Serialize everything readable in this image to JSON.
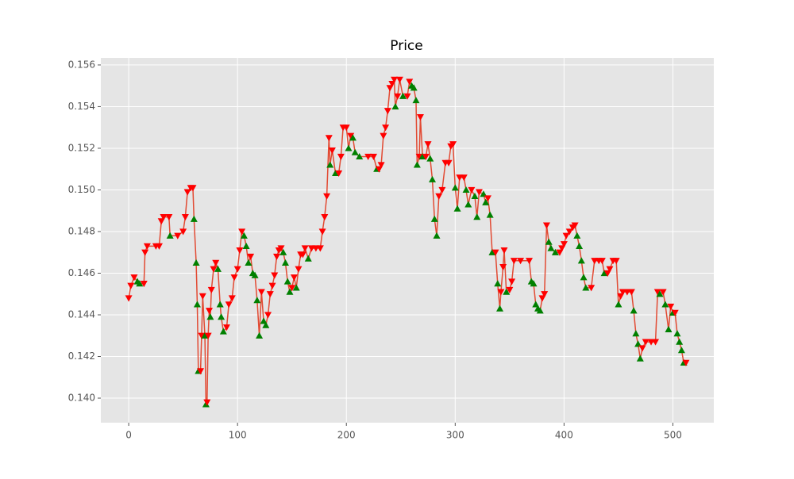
{
  "chart_data": {
    "type": "line",
    "title": "Price",
    "x": [
      0,
      2,
      5,
      8,
      10,
      14,
      15,
      17,
      25,
      28,
      30,
      32,
      37,
      38,
      45,
      50,
      52,
      54,
      57,
      59,
      60,
      62,
      63,
      64,
      66,
      67,
      68,
      70,
      71,
      72,
      73,
      74,
      75,
      76,
      78,
      80,
      82,
      84,
      85,
      87,
      90,
      92,
      95,
      97,
      100,
      102,
      104,
      106,
      108,
      110,
      112,
      114,
      116,
      118,
      120,
      122,
      124,
      126,
      128,
      130,
      132,
      134,
      136,
      138,
      140,
      142,
      144,
      146,
      148,
      150,
      152,
      154,
      156,
      158,
      160,
      162,
      165,
      168,
      172,
      176,
      178,
      180,
      182,
      184,
      185,
      187,
      190,
      193,
      195,
      197,
      200,
      202,
      204,
      206,
      208,
      212,
      220,
      225,
      228,
      230,
      232,
      234,
      236,
      238,
      240,
      242,
      244,
      245,
      247,
      249,
      252,
      256,
      258,
      260,
      262,
      264,
      265,
      267,
      268,
      270,
      273,
      275,
      277,
      279,
      281,
      283,
      285,
      288,
      291,
      294,
      296,
      298,
      300,
      302,
      304,
      308,
      310,
      312,
      315,
      318,
      320,
      322,
      326,
      328,
      330,
      332,
      334,
      337,
      339,
      341,
      342,
      344,
      345,
      347,
      350,
      352,
      354,
      360,
      368,
      370,
      372,
      374,
      376,
      378,
      380,
      382,
      384,
      386,
      388,
      392,
      396,
      398,
      400,
      402,
      405,
      408,
      410,
      412,
      414,
      416,
      418,
      420,
      425,
      428,
      432,
      435,
      437,
      440,
      442,
      445,
      448,
      450,
      452,
      454,
      458,
      462,
      464,
      466,
      468,
      470,
      472,
      475,
      480,
      484,
      486,
      488,
      491,
      493,
      496,
      498,
      500,
      502,
      504,
      506,
      508,
      510,
      512
    ],
    "series": [
      {
        "color": "#e24a33",
        "values": [
          0.1448,
          0.1454,
          0.1458,
          0.1456,
          0.1455,
          0.1455,
          0.147,
          0.1473,
          0.1473,
          0.1473,
          0.1485,
          0.1487,
          0.1487,
          0.1478,
          0.1478,
          0.148,
          0.1487,
          0.1499,
          0.1501,
          0.1501,
          0.1486,
          0.1465,
          0.1445,
          0.1413,
          0.1413,
          0.143,
          0.1449,
          0.143,
          0.1397,
          0.1398,
          0.143,
          0.1442,
          0.1439,
          0.1452,
          0.1462,
          0.1465,
          0.1462,
          0.1445,
          0.1439,
          0.1432,
          0.1434,
          0.1445,
          0.1448,
          0.1458,
          0.1462,
          0.1471,
          0.148,
          0.1478,
          0.1473,
          0.1465,
          0.1468,
          0.146,
          0.1459,
          0.1447,
          0.143,
          0.1451,
          0.1437,
          0.1435,
          0.144,
          0.145,
          0.1454,
          0.1459,
          0.1468,
          0.1471,
          0.1472,
          0.147,
          0.1465,
          0.1456,
          0.1451,
          0.1453,
          0.1458,
          0.1453,
          0.1462,
          0.1469,
          0.1469,
          0.1472,
          0.1467,
          0.1472,
          0.1472,
          0.1472,
          0.148,
          0.1487,
          0.1497,
          0.1525,
          0.1512,
          0.1519,
          0.1508,
          0.1508,
          0.1516,
          0.153,
          0.153,
          0.152,
          0.1526,
          0.1525,
          0.1518,
          0.1516,
          0.1516,
          0.1516,
          0.151,
          0.151,
          0.1512,
          0.1526,
          0.153,
          0.1538,
          0.1549,
          0.1551,
          0.1553,
          0.154,
          0.1545,
          0.1553,
          0.1545,
          0.1545,
          0.1552,
          0.155,
          0.1549,
          0.1543,
          0.1512,
          0.1516,
          0.1535,
          0.1516,
          0.1516,
          0.1522,
          0.1515,
          0.1505,
          0.1486,
          0.1478,
          0.1497,
          0.15,
          0.1513,
          0.1513,
          0.1521,
          0.1522,
          0.1501,
          0.1491,
          0.1506,
          0.1506,
          0.15,
          0.1493,
          0.15,
          0.1497,
          0.1487,
          0.1499,
          0.1498,
          0.1494,
          0.1496,
          0.1488,
          0.147,
          0.147,
          0.1455,
          0.1443,
          0.1451,
          0.1463,
          0.1471,
          0.1451,
          0.1452,
          0.1456,
          0.1466,
          0.1466,
          0.1466,
          0.1456,
          0.1455,
          0.1445,
          0.1443,
          0.1442,
          0.1448,
          0.145,
          0.1483,
          0.1475,
          0.1472,
          0.147,
          0.147,
          0.1472,
          0.1474,
          0.1478,
          0.148,
          0.1482,
          0.1483,
          0.1478,
          0.1473,
          0.1466,
          0.1458,
          0.1453,
          0.1453,
          0.1466,
          0.1466,
          0.1466,
          0.146,
          0.146,
          0.1462,
          0.1466,
          0.1466,
          0.1445,
          0.1449,
          0.1451,
          0.1451,
          0.1451,
          0.1442,
          0.1431,
          0.1426,
          0.1419,
          0.1424,
          0.1427,
          0.1427,
          0.1427,
          0.1451,
          0.145,
          0.1451,
          0.1445,
          0.1433,
          0.1444,
          0.1441,
          0.1441,
          0.1431,
          0.1427,
          0.1423,
          0.1417,
          0.1417
        ],
        "markers": [
          "v",
          "v",
          "v",
          "^",
          "^",
          "v",
          "v",
          "v",
          "v",
          "v",
          "v",
          "v",
          "v",
          "^",
          "v",
          "v",
          "v",
          "v",
          "v",
          "v",
          "^",
          "^",
          "^",
          "^",
          "v",
          "v",
          "v",
          "^",
          "^",
          "v",
          "v",
          "v",
          "^",
          "v",
          "v",
          "v",
          "^",
          "^",
          "^",
          "^",
          "v",
          "v",
          "v",
          "v",
          "v",
          "v",
          "v",
          "^",
          "^",
          "^",
          "v",
          "^",
          "^",
          "^",
          "^",
          "v",
          "^",
          "^",
          "v",
          "v",
          "v",
          "v",
          "v",
          "v",
          "v",
          "^",
          "^",
          "^",
          "^",
          "v",
          "v",
          "^",
          "v",
          "v",
          "v",
          "v",
          "^",
          "v",
          "v",
          "v",
          "v",
          "v",
          "v",
          "v",
          "^",
          "v",
          "^",
          "v",
          "v",
          "v",
          "v",
          "^",
          "v",
          "^",
          "^",
          "^",
          "v",
          "v",
          "^",
          "v",
          "v",
          "v",
          "v",
          "v",
          "v",
          "v",
          "v",
          "^",
          "v",
          "v",
          "^",
          "v",
          "v",
          "^",
          "^",
          "^",
          "^",
          "v",
          "v",
          "^",
          "v",
          "v",
          "^",
          "^",
          "^",
          "^",
          "v",
          "v",
          "v",
          "v",
          "v",
          "v",
          "^",
          "^",
          "v",
          "v",
          "^",
          "^",
          "v",
          "^",
          "^",
          "v",
          "^",
          "^",
          "v",
          "^",
          "^",
          "v",
          "^",
          "^",
          "v",
          "v",
          "v",
          "^",
          "v",
          "v",
          "v",
          "v",
          "v",
          "^",
          "^",
          "^",
          "^",
          "^",
          "v",
          "v",
          "v",
          "^",
          "^",
          "^",
          "v",
          "v",
          "v",
          "v",
          "v",
          "v",
          "v",
          "^",
          "^",
          "^",
          "^",
          "^",
          "v",
          "v",
          "v",
          "v",
          "^",
          "v",
          "v",
          "v",
          "v",
          "^",
          "v",
          "v",
          "v",
          "v",
          "^",
          "^",
          "^",
          "^",
          "v",
          "v",
          "v",
          "v",
          "v",
          "^",
          "v",
          "^",
          "^",
          "v",
          "^",
          "v",
          "^",
          "^",
          "^",
          "^",
          "v"
        ]
      }
    ],
    "marker_colors": {
      "^": "#008000",
      "v": "#ff0000"
    },
    "xlim": [
      -25.6,
      537.6
    ],
    "xticks": [
      0,
      100,
      200,
      300,
      400,
      500
    ],
    "ylim": [
      0.13882,
      0.15634
    ],
    "yticks": [
      {
        "value": 0.14,
        "label": "0.140"
      },
      0.142,
      0.144,
      0.146,
      0.148,
      {
        "value": 0.15,
        "label": "0.150"
      },
      0.152,
      0.154,
      0.156
    ],
    "grid": true
  }
}
